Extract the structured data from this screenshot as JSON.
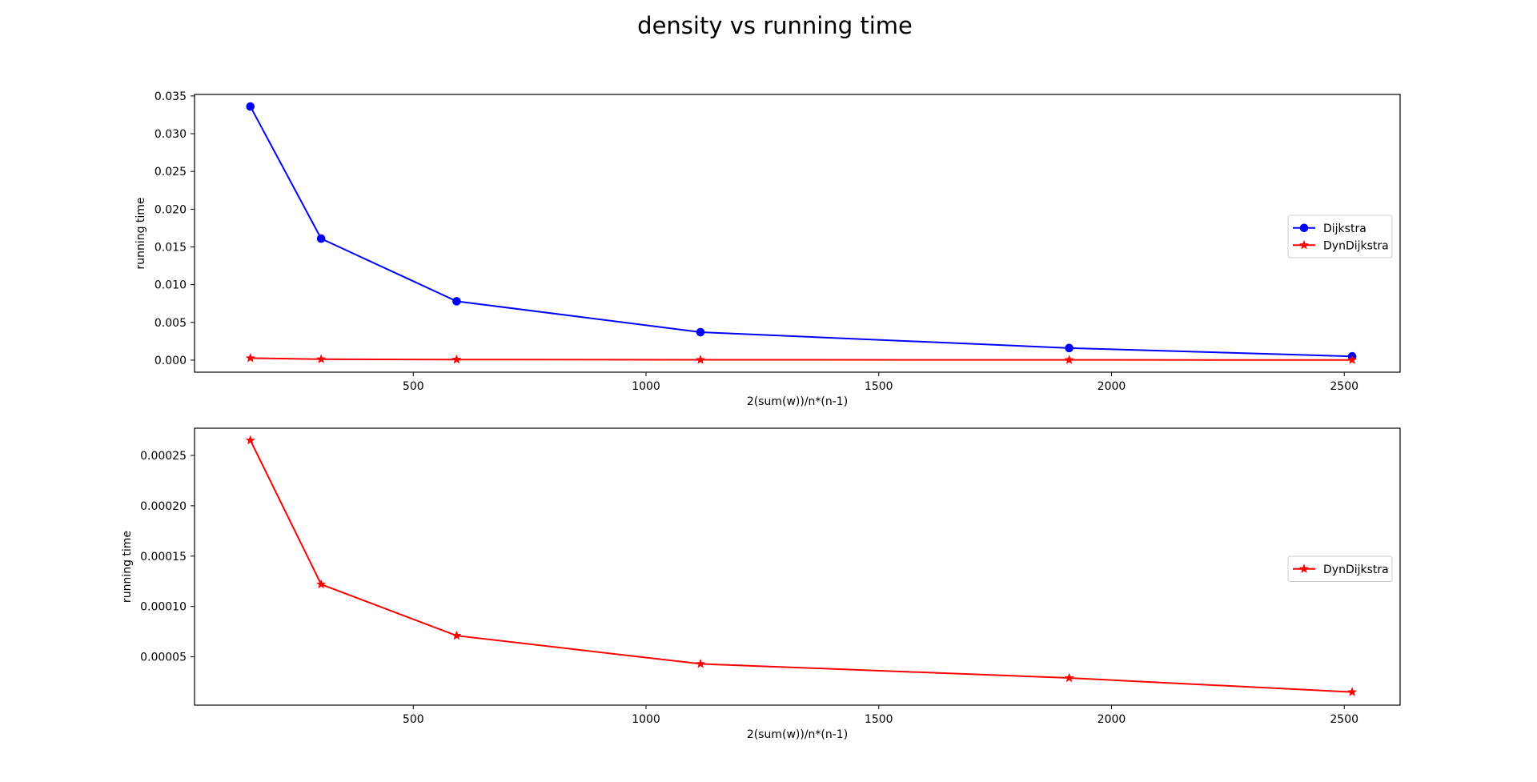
{
  "figure": {
    "title": "density vs running time"
  },
  "chart_data": [
    {
      "type": "line",
      "title": "",
      "xlabel": "2(sum(w))/n*(n-1)",
      "ylabel": "running time",
      "xlim": [
        30,
        2620
      ],
      "ylim": [
        -0.0016,
        0.0352
      ],
      "xticks": [
        500,
        1000,
        1500,
        2000,
        2500
      ],
      "xtick_labels": [
        "500",
        "1000",
        "1500",
        "2000",
        "2500"
      ],
      "yticks": [
        0,
        0.005,
        0.01,
        0.015,
        0.02,
        0.025,
        0.03,
        0.035
      ],
      "ytick_labels": [
        "0.000",
        "0.005",
        "0.010",
        "0.015",
        "0.020",
        "0.025",
        "0.030",
        "0.035"
      ],
      "grid": false,
      "legend": "center-right",
      "series": [
        {
          "name": "Dijkstra",
          "color": "#0000ff",
          "marker": "circle",
          "x": [
            150,
            302,
            593,
            1117,
            1909,
            2517
          ],
          "y": [
            0.0336,
            0.0161,
            0.0078,
            0.0037,
            0.0016,
            0.0005
          ]
        },
        {
          "name": "DynDijkstra",
          "color": "#ff0000",
          "marker": "star",
          "x": [
            150,
            302,
            593,
            1117,
            1909,
            2517
          ],
          "y": [
            0.000265,
            0.000122,
            7.1e-05,
            4.3e-05,
            2.9e-05,
            1.5e-05
          ]
        }
      ]
    },
    {
      "type": "line",
      "title": "",
      "xlabel": "2(sum(w))/n*(n-1)",
      "ylabel": "running time",
      "xlim": [
        30,
        2620
      ],
      "ylim": [
        2e-06,
        0.000277
      ],
      "xticks": [
        500,
        1000,
        1500,
        2000,
        2500
      ],
      "xtick_labels": [
        "500",
        "1000",
        "1500",
        "2000",
        "2500"
      ],
      "yticks": [
        5e-05,
        0.0001,
        0.00015,
        0.0002,
        0.00025
      ],
      "ytick_labels": [
        "0.00005",
        "0.00010",
        "0.00015",
        "0.00020",
        "0.00025"
      ],
      "grid": false,
      "legend": "center-right",
      "series": [
        {
          "name": "DynDijkstra",
          "color": "#ff0000",
          "marker": "star",
          "x": [
            150,
            302,
            593,
            1117,
            1909,
            2517
          ],
          "y": [
            0.000265,
            0.000122,
            7.1e-05,
            4.3e-05,
            2.9e-05,
            1.5e-05
          ]
        }
      ]
    }
  ]
}
